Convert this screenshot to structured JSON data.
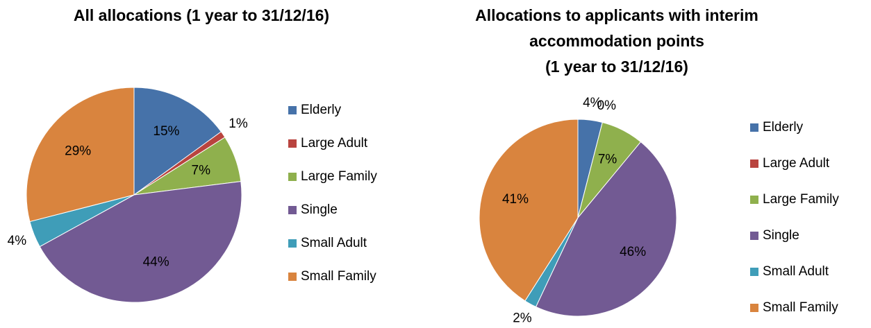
{
  "chart_data": [
    {
      "type": "pie",
      "title": [
        "All allocations (1 year to 31/12/16)"
      ],
      "categories": [
        "Elderly",
        "Large Adult",
        "Large Family",
        "Single",
        "Small Adult",
        "Small Family"
      ],
      "values": [
        15,
        1,
        7,
        44,
        4,
        29
      ],
      "value_labels": [
        "15%",
        "1%",
        "7%",
        "44%",
        "4%",
        "29%"
      ],
      "colors": [
        "#4672a9",
        "#b9443f",
        "#8fb04d",
        "#725a93",
        "#3f9db8",
        "#d9843e"
      ],
      "legend": "right"
    },
    {
      "type": "pie",
      "title": [
        "Allocations to applicants with interim",
        "accommodation points",
        "(1 year to 31/12/16)"
      ],
      "categories": [
        "Elderly",
        "Large Adult",
        "Large Family",
        "Single",
        "Small Adult",
        "Small Family"
      ],
      "values": [
        4,
        0,
        7,
        46,
        2,
        41
      ],
      "value_labels": [
        "4%",
        "0%",
        "7%",
        "46%",
        "2%",
        "41%"
      ],
      "colors": [
        "#4672a9",
        "#b9443f",
        "#8fb04d",
        "#725a93",
        "#3f9db8",
        "#d9843e"
      ],
      "legend": "right"
    }
  ]
}
